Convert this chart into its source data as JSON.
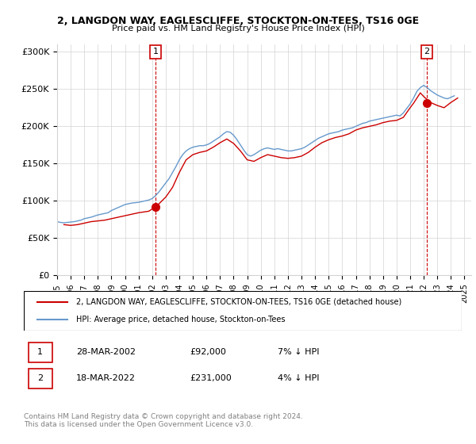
{
  "title1": "2, LANGDON WAY, EAGLESCLIFFE, STOCKTON-ON-TEES, TS16 0GE",
  "title2": "Price paid vs. HM Land Registry's House Price Index (HPI)",
  "ylim": [
    0,
    310000
  ],
  "yticks": [
    0,
    50000,
    100000,
    150000,
    200000,
    250000,
    300000
  ],
  "ytick_labels": [
    "£0",
    "£50K",
    "£100K",
    "£150K",
    "£200K",
    "£250K",
    "£300K"
  ],
  "legend_line1": "2, LANGDON WAY, EAGLESCLIFFE, STOCKTON-ON-TEES, TS16 0GE (detached house)",
  "legend_line2": "HPI: Average price, detached house, Stockton-on-Tees",
  "red_color": "#cc0000",
  "blue_color": "#6699cc",
  "annotation1_label": "1",
  "annotation1_date": "28-MAR-2002",
  "annotation1_price": 92000,
  "annotation1_text": "28-MAR-2002        £92,000        7% ↓ HPI",
  "annotation2_label": "2",
  "annotation2_date": "18-MAR-2022",
  "annotation2_price": 231000,
  "annotation2_text": "18-MAR-2022        £231,000        4% ↓ HPI",
  "footer": "Contains HM Land Registry data © Crown copyright and database right 2024.\nThis data is licensed under the Open Government Licence v3.0.",
  "xstart_year": 1995,
  "xend_year": 2025,
  "hpi_data": {
    "years": [
      1995.0,
      1995.25,
      1995.5,
      1995.75,
      1996.0,
      1996.25,
      1996.5,
      1996.75,
      1997.0,
      1997.25,
      1997.5,
      1997.75,
      1998.0,
      1998.25,
      1998.5,
      1998.75,
      1999.0,
      1999.25,
      1999.5,
      1999.75,
      2000.0,
      2000.25,
      2000.5,
      2000.75,
      2001.0,
      2001.25,
      2001.5,
      2001.75,
      2002.0,
      2002.25,
      2002.5,
      2002.75,
      2003.0,
      2003.25,
      2003.5,
      2003.75,
      2004.0,
      2004.25,
      2004.5,
      2004.75,
      2005.0,
      2005.25,
      2005.5,
      2005.75,
      2006.0,
      2006.25,
      2006.5,
      2006.75,
      2007.0,
      2007.25,
      2007.5,
      2007.75,
      2008.0,
      2008.25,
      2008.5,
      2008.75,
      2009.0,
      2009.25,
      2009.5,
      2009.75,
      2010.0,
      2010.25,
      2010.5,
      2010.75,
      2011.0,
      2011.25,
      2011.5,
      2011.75,
      2012.0,
      2012.25,
      2012.5,
      2012.75,
      2013.0,
      2013.25,
      2013.5,
      2013.75,
      2014.0,
      2014.25,
      2014.5,
      2014.75,
      2015.0,
      2015.25,
      2015.5,
      2015.75,
      2016.0,
      2016.25,
      2016.5,
      2016.75,
      2017.0,
      2017.25,
      2017.5,
      2017.75,
      2018.0,
      2018.25,
      2018.5,
      2018.75,
      2019.0,
      2019.25,
      2019.5,
      2019.75,
      2020.0,
      2020.25,
      2020.5,
      2020.75,
      2021.0,
      2021.25,
      2021.5,
      2021.75,
      2022.0,
      2022.25,
      2022.5,
      2022.75,
      2023.0,
      2023.25,
      2023.5,
      2023.75,
      2024.0,
      2024.25
    ],
    "values": [
      72000,
      71000,
      70500,
      71000,
      71500,
      72000,
      73000,
      74000,
      76000,
      77000,
      78000,
      79500,
      81000,
      82000,
      83000,
      84000,
      87000,
      89000,
      91000,
      93000,
      95000,
      96000,
      97000,
      97500,
      98000,
      99000,
      100000,
      101000,
      103000,
      107000,
      112000,
      118000,
      124000,
      130000,
      138000,
      146000,
      155000,
      162000,
      167000,
      170000,
      172000,
      173000,
      174000,
      174000,
      175000,
      177000,
      180000,
      183000,
      186000,
      190000,
      193000,
      192000,
      188000,
      182000,
      175000,
      168000,
      162000,
      160000,
      162000,
      165000,
      168000,
      170000,
      171000,
      170000,
      169000,
      170000,
      169000,
      168000,
      167000,
      167000,
      168000,
      169000,
      170000,
      172000,
      175000,
      178000,
      181000,
      184000,
      186000,
      188000,
      190000,
      191000,
      192000,
      193000,
      195000,
      196000,
      197000,
      198000,
      200000,
      202000,
      204000,
      205000,
      207000,
      208000,
      209000,
      210000,
      211000,
      212000,
      213000,
      214000,
      215000,
      214000,
      218000,
      224000,
      230000,
      238000,
      247000,
      252000,
      255000,
      252000,
      248000,
      245000,
      242000,
      240000,
      238000,
      237000,
      239000,
      241000
    ]
  },
  "property_data": {
    "years": [
      1995.5,
      1996.0,
      1996.5,
      1997.0,
      1997.5,
      1998.0,
      1998.5,
      1999.0,
      1999.5,
      2000.0,
      2000.5,
      2001.0,
      2001.75,
      2002.25,
      2002.5,
      2003.0,
      2003.5,
      2004.0,
      2004.5,
      2005.0,
      2005.5,
      2006.0,
      2006.5,
      2007.0,
      2007.5,
      2008.0,
      2008.5,
      2009.0,
      2009.5,
      2010.0,
      2010.5,
      2011.0,
      2011.5,
      2012.0,
      2012.5,
      2013.0,
      2013.5,
      2014.0,
      2014.5,
      2015.0,
      2015.5,
      2016.0,
      2016.5,
      2017.0,
      2017.5,
      2018.0,
      2018.5,
      2019.0,
      2019.5,
      2020.0,
      2020.5,
      2021.0,
      2021.25,
      2021.75,
      2022.0,
      2022.5,
      2023.0,
      2023.5,
      2024.0,
      2024.5
    ],
    "values": [
      68000,
      67000,
      68000,
      70000,
      72000,
      73000,
      74000,
      76000,
      78000,
      80000,
      82000,
      84000,
      86000,
      92000,
      96000,
      105000,
      118000,
      138000,
      155000,
      162000,
      165000,
      167000,
      172000,
      178000,
      183000,
      177000,
      167000,
      155000,
      153000,
      158000,
      162000,
      160000,
      158000,
      157000,
      158000,
      160000,
      165000,
      172000,
      178000,
      182000,
      185000,
      187000,
      190000,
      195000,
      198000,
      200000,
      202000,
      205000,
      207000,
      208000,
      212000,
      225000,
      231000,
      245000,
      240000,
      232000,
      228000,
      225000,
      232000,
      238000
    ]
  },
  "sale1_year": 2002.24,
  "sale1_price": 92000,
  "sale2_year": 2022.21,
  "sale2_price": 231000
}
